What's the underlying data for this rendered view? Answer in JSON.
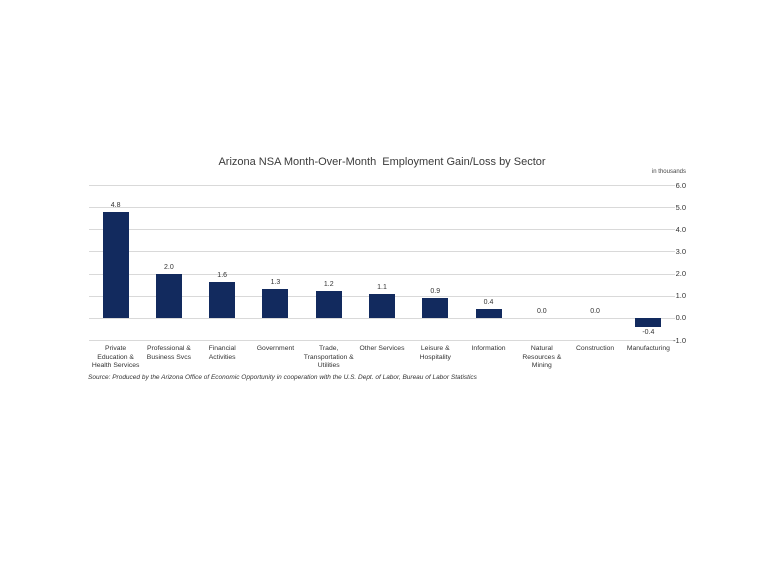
{
  "chart": {
    "title": "Arizona NSA Month-Over-Month  Employment Gain/Loss by Sector",
    "units_label": "in thousands",
    "source_note": "Source: Produced by the Arizona Office of Economic Opportunity in cooperation with the U.S. Dept. of Labor, Bureau of Labor Statistics",
    "colors": {
      "bar": "#122a5e",
      "gridline": "#d9d9d9",
      "text": "#333333"
    }
  },
  "chart_data": {
    "type": "bar",
    "title": "Arizona NSA Month-Over-Month Employment Gain/Loss by Sector",
    "categories": [
      [
        "Private",
        "Education &",
        "Health Services"
      ],
      [
        "Professional &",
        "Business Svcs"
      ],
      [
        "Financial",
        "Activities"
      ],
      [
        "Government"
      ],
      [
        "Trade,",
        "Transportation &",
        "Utilities"
      ],
      [
        "Other Services"
      ],
      [
        "Leisure &",
        "Hospitality"
      ],
      [
        "Information"
      ],
      [
        "Natural",
        "Resources &",
        "Mining"
      ],
      [
        "Construction"
      ],
      [
        "Manufacturing"
      ]
    ],
    "values": [
      4.8,
      2.0,
      1.6,
      1.3,
      1.2,
      1.1,
      0.9,
      0.4,
      0.0,
      0.0,
      -0.4
    ],
    "value_labels": [
      "4.8",
      "2.0",
      "1.6",
      "1.3",
      "1.2",
      "1.1",
      "0.9",
      "0.4",
      "0.0",
      "0.0",
      "-0.4"
    ],
    "xlabel": "",
    "ylabel": "in thousands",
    "ylim": [
      -1.0,
      6.0
    ],
    "yticks": [
      6.0,
      5.0,
      4.0,
      3.0,
      2.0,
      1.0,
      0.0,
      -1.0
    ],
    "grid": true,
    "legend": false,
    "legend_position": "none",
    "bar_color": "#122a5e"
  }
}
